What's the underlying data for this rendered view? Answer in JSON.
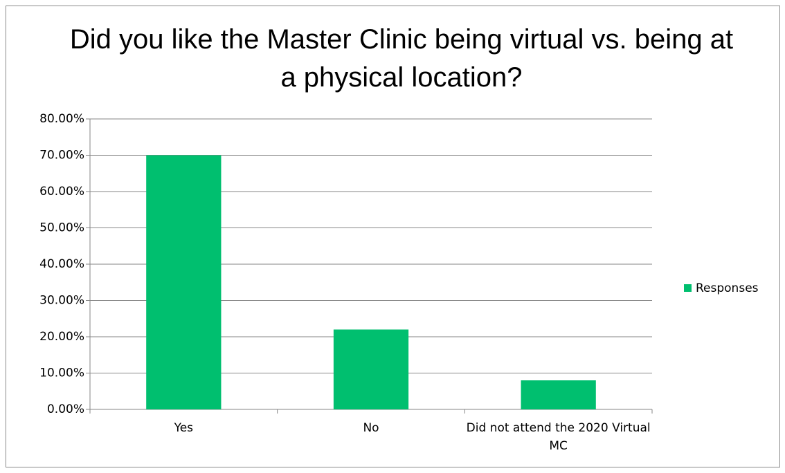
{
  "chart_data": {
    "type": "bar",
    "title": "Did you like the Master Clinic being virtual vs. being at a physical location?",
    "categories": [
      "Yes",
      "No",
      "Did not attend the 2020 Virtual MC"
    ],
    "series": [
      {
        "name": "Responses",
        "color": "#00BF6F",
        "values": [
          70,
          22,
          8
        ]
      }
    ],
    "ylim": [
      0,
      80
    ],
    "yticks": [
      {
        "value": 0,
        "label": "0.00%"
      },
      {
        "value": 10,
        "label": "10.00%"
      },
      {
        "value": 20,
        "label": "20.00%"
      },
      {
        "value": 30,
        "label": "30.00%"
      },
      {
        "value": 40,
        "label": "40.00%"
      },
      {
        "value": 50,
        "label": "50.00%"
      },
      {
        "value": 60,
        "label": "60.00%"
      },
      {
        "value": 70,
        "label": "70.00%"
      },
      {
        "value": 80,
        "label": "80.00%"
      }
    ],
    "grid": true,
    "legend": "right"
  }
}
